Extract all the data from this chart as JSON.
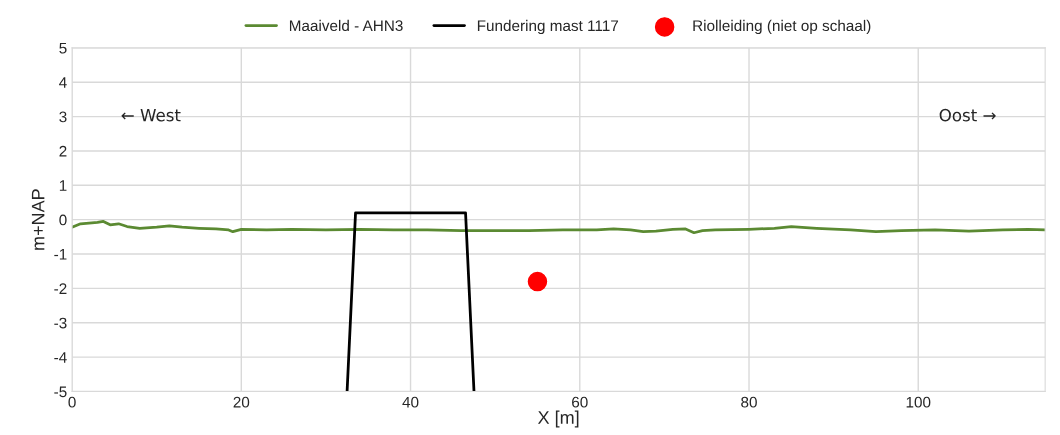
{
  "chart_data": {
    "type": "line",
    "xlabel": "X [m]",
    "ylabel": "m+NAP",
    "xlim": [
      0,
      115
    ],
    "ylim": [
      -5,
      5
    ],
    "xticks": [
      0,
      20,
      40,
      60,
      80,
      100
    ],
    "yticks": [
      -5,
      -4,
      -3,
      -2,
      -1,
      0,
      1,
      2,
      3,
      4,
      5
    ],
    "grid": true,
    "legend": "top",
    "annotations": [
      "← West",
      "Oost →"
    ],
    "series": [
      {
        "name": "Maaiveld - AHN3",
        "color": "#5b8a32",
        "x": [
          0,
          1,
          2,
          3,
          3.7,
          4.5,
          5.5,
          6.5,
          8,
          10,
          11.5,
          13,
          15,
          17,
          18.5,
          19,
          20,
          23,
          26,
          30,
          34,
          38,
          42,
          46,
          50,
          54,
          58,
          62,
          64,
          66,
          67.5,
          69,
          71,
          72.5,
          73.5,
          74.5,
          76,
          80,
          83,
          85,
          88,
          92,
          95,
          98,
          102,
          106,
          110,
          113,
          115
        ],
        "values": [
          -0.22,
          -0.12,
          -0.1,
          -0.08,
          -0.05,
          -0.15,
          -0.12,
          -0.2,
          -0.25,
          -0.22,
          -0.18,
          -0.22,
          -0.25,
          -0.27,
          -0.3,
          -0.35,
          -0.28,
          -0.3,
          -0.28,
          -0.3,
          -0.28,
          -0.3,
          -0.3,
          -0.32,
          -0.32,
          -0.32,
          -0.3,
          -0.3,
          -0.27,
          -0.3,
          -0.35,
          -0.33,
          -0.28,
          -0.27,
          -0.38,
          -0.32,
          -0.3,
          -0.28,
          -0.25,
          -0.2,
          -0.25,
          -0.3,
          -0.35,
          -0.32,
          -0.3,
          -0.33,
          -0.3,
          -0.28,
          -0.3
        ]
      },
      {
        "name": "Fundering mast 1117",
        "color": "#000000",
        "x": [
          32.5,
          33.5,
          46.5,
          47.5
        ],
        "values": [
          -5,
          0.2,
          0.2,
          -5
        ]
      },
      {
        "name": "Riolleiding (niet op schaal)",
        "type": "scatter",
        "color": "#ff0000",
        "marker": "circle",
        "x": [
          55
        ],
        "values": [
          -1.8
        ]
      }
    ]
  }
}
